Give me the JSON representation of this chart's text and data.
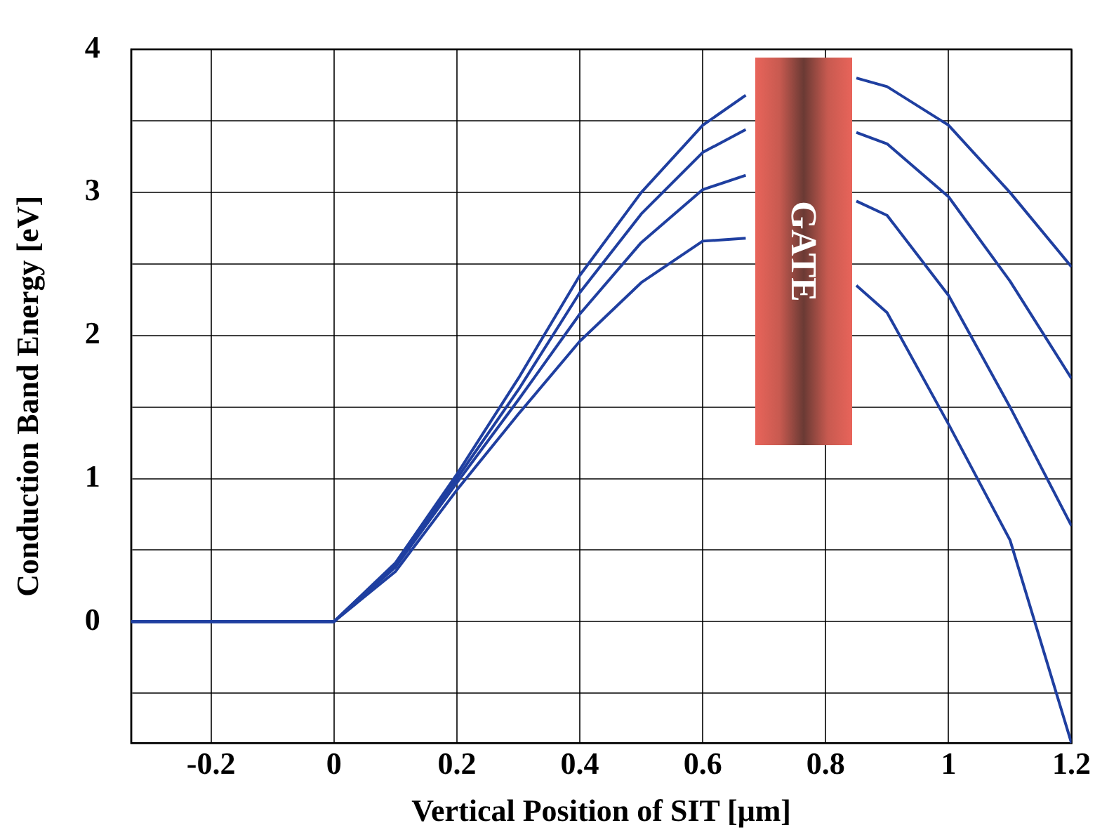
{
  "chart_data": {
    "type": "line",
    "xlabel": "Vertical Position of SIT [μm]",
    "ylabel": "Conduction Band Energy [eV]",
    "x": [
      -0.33,
      0,
      0.1,
      0.2,
      0.3,
      0.4,
      0.5,
      0.6,
      0.67,
      0.76,
      0.85,
      0.9,
      1.0,
      1.1,
      1.2
    ],
    "series": [
      {
        "color": "#1f3fa0",
        "values": [
          0,
          0,
          0.41,
          1.03,
          1.7,
          2.42,
          3.0,
          3.47,
          3.68,
          null,
          3.8,
          3.74,
          3.47,
          3.0,
          2.48
        ]
      },
      {
        "color": "#1f3fa0",
        "values": [
          0,
          0,
          0.4,
          1.0,
          1.62,
          2.3,
          2.85,
          3.28,
          3.44,
          null,
          3.42,
          3.34,
          2.97,
          2.38,
          1.7
        ]
      },
      {
        "color": "#1f3fa0",
        "values": [
          0,
          0,
          0.38,
          0.97,
          1.55,
          2.15,
          2.65,
          3.02,
          3.12,
          null,
          2.94,
          2.84,
          2.28,
          1.5,
          0.67
        ]
      },
      {
        "color": "#1f3fa0",
        "values": [
          0,
          0,
          0.35,
          0.92,
          1.45,
          1.96,
          2.37,
          2.66,
          2.68,
          null,
          2.35,
          2.16,
          1.38,
          0.57,
          -0.85
        ]
      }
    ],
    "xlim": [
      -0.33,
      1.2
    ],
    "ylim": [
      -0.85,
      4
    ],
    "xticks": [
      -0.2,
      0,
      0.2,
      0.4,
      0.6,
      0.8,
      1,
      1.2
    ],
    "yticks": [
      {
        "value": -0.5,
        "label": null
      },
      0,
      {
        "value": 0.5,
        "label": null
      },
      1,
      {
        "value": 1.5,
        "label": null
      },
      2,
      {
        "value": 2.5,
        "label": null
      },
      3,
      {
        "value": 3.5,
        "label": null
      },
      4
    ],
    "grid": true,
    "legend": false,
    "marker": "none",
    "line_style": "solid",
    "annotations": [
      "GATE"
    ]
  }
}
